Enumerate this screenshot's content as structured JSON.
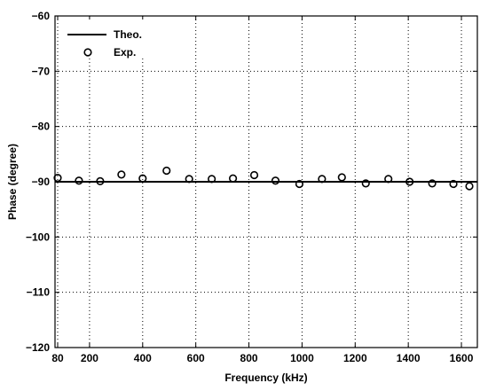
{
  "chart_data": {
    "type": "line",
    "title": "",
    "xlabel": "Frequency (kHz)",
    "ylabel": "Phase (degree)",
    "xlim": [
      70,
      1660
    ],
    "ylim": [
      -120,
      -60
    ],
    "xticks": [
      80,
      200,
      400,
      600,
      800,
      1000,
      1200,
      1400,
      1600
    ],
    "yticks": [
      -60,
      -70,
      -80,
      -90,
      -100,
      -110,
      -120
    ],
    "grid": true,
    "legend_position": "top-left",
    "series": [
      {
        "name": "Theo.",
        "style": "solid-line",
        "color": "#000000",
        "x": [
          70,
          1660
        ],
        "y": [
          -90,
          -90
        ]
      },
      {
        "name": "Exp.",
        "style": "open-circle-markers",
        "color": "#000000",
        "x": [
          80,
          160,
          240,
          320,
          400,
          490,
          575,
          660,
          740,
          820,
          900,
          990,
          1075,
          1150,
          1240,
          1325,
          1405,
          1490,
          1570,
          1630
        ],
        "y": [
          -89.3,
          -89.8,
          -89.9,
          -88.7,
          -89.4,
          -88.0,
          -89.5,
          -89.5,
          -89.4,
          -88.8,
          -89.8,
          -90.4,
          -89.5,
          -89.2,
          -90.3,
          -89.5,
          -90.0,
          -90.3,
          -90.4,
          -90.8
        ]
      }
    ]
  }
}
